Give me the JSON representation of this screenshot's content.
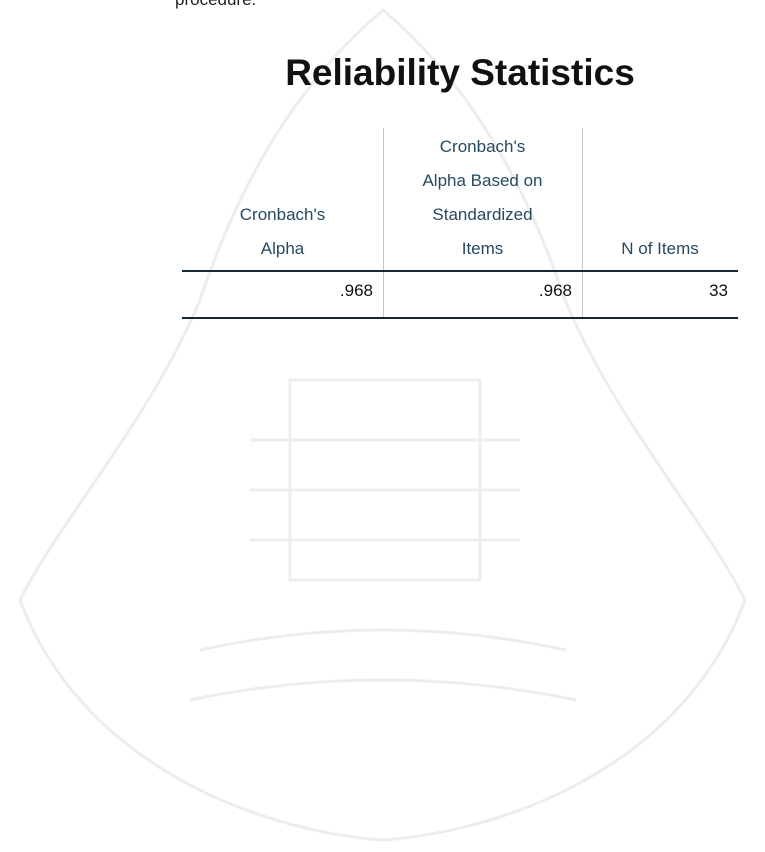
{
  "text_above": "procedure.",
  "table": {
    "title": "Reliability Statistics",
    "header": [
      [
        "Cronbach's",
        "Alpha"
      ],
      [
        "Cronbach's",
        "Alpha Based on",
        "Standardized",
        "Items"
      ],
      [
        "N of Items"
      ]
    ],
    "rows": [
      [
        ".968",
        ".968",
        "33"
      ]
    ]
  }
}
